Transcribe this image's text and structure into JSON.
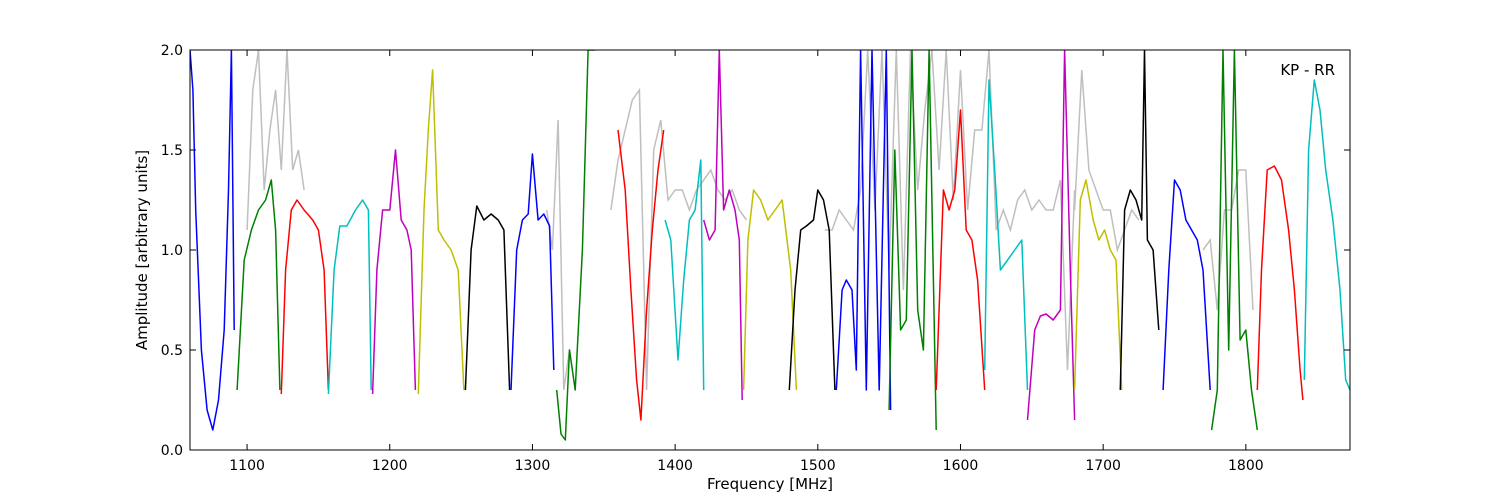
{
  "chart_data": {
    "type": "line",
    "annotation": "KP - RR",
    "xlabel": "Frequency [MHz]",
    "ylabel": "Amplitude [arbitrary units]",
    "xlim": [
      1060,
      1873
    ],
    "ylim": [
      0,
      2
    ],
    "xticks": [
      {
        "value": 1100,
        "label": "1100"
      },
      {
        "value": 1200,
        "label": "1200"
      },
      {
        "value": 1300,
        "label": "1300"
      },
      {
        "value": 1400,
        "label": "1400"
      },
      {
        "value": 1500,
        "label": "1500"
      },
      {
        "value": 1600,
        "label": "1600"
      },
      {
        "value": 1700,
        "label": "1700"
      },
      {
        "value": 1800,
        "label": "1800"
      }
    ],
    "yticks": [
      {
        "value": 0.0,
        "label": "0.0"
      },
      {
        "value": 0.5,
        "label": "0.5"
      },
      {
        "value": 1.0,
        "label": "1.0"
      },
      {
        "value": 1.5,
        "label": "1.5"
      },
      {
        "value": 2.0,
        "label": "2.0"
      }
    ],
    "grid": false,
    "background_series_color": "#bfbfbf",
    "series": [
      {
        "color": "#0000ff",
        "x": [
          1060,
          1062,
          1064,
          1068,
          1072,
          1076,
          1080,
          1084,
          1087,
          1089,
          1091
        ],
        "y": [
          2.0,
          1.8,
          1.2,
          0.5,
          0.2,
          0.1,
          0.25,
          0.6,
          1.3,
          2.0,
          0.6
        ]
      },
      {
        "color": "#008000",
        "x": [
          1093,
          1098,
          1103,
          1108,
          1113,
          1117,
          1120,
          1123
        ],
        "y": [
          0.3,
          0.95,
          1.1,
          1.2,
          1.25,
          1.35,
          1.1,
          0.3
        ]
      },
      {
        "color": "#ff0000",
        "x": [
          1124,
          1127,
          1131,
          1135,
          1140,
          1146,
          1150,
          1154,
          1157
        ],
        "y": [
          0.28,
          0.9,
          1.2,
          1.25,
          1.2,
          1.15,
          1.1,
          0.9,
          0.3
        ]
      },
      {
        "color": "#00bfbf",
        "x": [
          1157,
          1161,
          1165,
          1170,
          1176,
          1181,
          1185,
          1187
        ],
        "y": [
          0.28,
          0.9,
          1.12,
          1.12,
          1.2,
          1.25,
          1.2,
          0.3
        ]
      },
      {
        "color": "#bf00bf",
        "x": [
          1188,
          1191,
          1195,
          1200,
          1204,
          1208,
          1212,
          1215,
          1218
        ],
        "y": [
          0.28,
          0.9,
          1.2,
          1.2,
          1.5,
          1.15,
          1.1,
          1.0,
          0.3
        ]
      },
      {
        "color": "#bfbf00",
        "x": [
          1220,
          1224,
          1227,
          1230,
          1234,
          1238,
          1243,
          1248,
          1252
        ],
        "y": [
          0.28,
          1.2,
          1.6,
          1.9,
          1.1,
          1.05,
          1.0,
          0.9,
          0.3
        ]
      },
      {
        "color": "#000000",
        "x": [
          1253,
          1257,
          1261,
          1266,
          1271,
          1276,
          1280,
          1284
        ],
        "y": [
          0.3,
          1.0,
          1.22,
          1.15,
          1.18,
          1.15,
          1.1,
          0.3
        ]
      },
      {
        "color": "#0000ff",
        "x": [
          1285,
          1289,
          1293,
          1297,
          1300,
          1304,
          1308,
          1312,
          1315
        ],
        "y": [
          0.3,
          1.0,
          1.15,
          1.18,
          1.48,
          1.15,
          1.18,
          1.12,
          0.4
        ]
      },
      {
        "color": "#008000",
        "x": [
          1317,
          1320,
          1323,
          1326,
          1330,
          1335,
          1339,
          1342,
          1344
        ],
        "y": [
          0.3,
          0.08,
          0.05,
          0.5,
          0.3,
          1.0,
          2.0,
          2.0,
          2.0
        ]
      },
      {
        "color": "#ff0000",
        "x": [
          1360,
          1365,
          1369,
          1373,
          1376,
          1380,
          1384,
          1388,
          1392
        ],
        "y": [
          1.6,
          1.3,
          0.8,
          0.35,
          0.15,
          0.7,
          1.1,
          1.4,
          1.6
        ]
      },
      {
        "color": "#00bfbf",
        "x": [
          1393,
          1397,
          1402,
          1406,
          1410,
          1414,
          1418,
          1420
        ],
        "y": [
          1.15,
          1.05,
          0.45,
          0.85,
          1.15,
          1.2,
          1.45,
          0.3
        ]
      },
      {
        "color": "#bf00bf",
        "x": [
          1420,
          1424,
          1428,
          1431,
          1434,
          1438,
          1442,
          1445,
          1447
        ],
        "y": [
          1.15,
          1.05,
          1.1,
          2.0,
          1.2,
          1.3,
          1.2,
          1.05,
          0.25
        ]
      },
      {
        "color": "#bfbf00",
        "x": [
          1448,
          1451,
          1455,
          1460,
          1465,
          1470,
          1475,
          1481,
          1485
        ],
        "y": [
          0.3,
          1.05,
          1.3,
          1.25,
          1.15,
          1.2,
          1.25,
          0.9,
          0.3
        ]
      },
      {
        "color": "#000000",
        "x": [
          1480,
          1484,
          1488,
          1492,
          1497,
          1500,
          1504,
          1508,
          1512
        ],
        "y": [
          0.3,
          0.8,
          1.1,
          1.12,
          1.15,
          1.3,
          1.25,
          1.1,
          0.3
        ]
      },
      {
        "color": "#0000ff",
        "x": [
          1513,
          1517,
          1520,
          1524,
          1527,
          1530,
          1534,
          1538,
          1543,
          1548,
          1551
        ],
        "y": [
          0.3,
          0.8,
          0.85,
          0.8,
          0.4,
          2.0,
          0.3,
          2.0,
          0.3,
          2.0,
          0.2
        ]
      },
      {
        "color": "#008000",
        "x": [
          1550,
          1554,
          1558,
          1562,
          1566,
          1570,
          1574,
          1578,
          1583
        ],
        "y": [
          0.2,
          1.5,
          0.6,
          0.65,
          2.0,
          0.7,
          0.5,
          2.0,
          0.1
        ]
      },
      {
        "color": "#ff0000",
        "x": [
          1583,
          1588,
          1592,
          1596,
          1600,
          1604,
          1608,
          1612,
          1617
        ],
        "y": [
          0.3,
          1.3,
          1.2,
          1.3,
          1.7,
          1.1,
          1.05,
          0.85,
          0.3
        ]
      },
      {
        "color": "#00bfbf",
        "x": [
          1617,
          1620,
          1624,
          1628,
          1633,
          1638,
          1643,
          1647
        ],
        "y": [
          0.4,
          1.85,
          1.4,
          0.9,
          0.95,
          1.0,
          1.05,
          0.3
        ]
      },
      {
        "color": "#bf00bf",
        "x": [
          1647,
          1652,
          1656,
          1660,
          1665,
          1670,
          1673,
          1677,
          1680
        ],
        "y": [
          0.15,
          0.6,
          0.67,
          0.68,
          0.65,
          0.7,
          2.0,
          0.9,
          0.15
        ]
      },
      {
        "color": "#bfbf00",
        "x": [
          1680,
          1684,
          1688,
          1693,
          1697,
          1701,
          1705,
          1709,
          1713
        ],
        "y": [
          0.3,
          1.25,
          1.35,
          1.15,
          1.05,
          1.1,
          1.0,
          0.95,
          0.3
        ]
      },
      {
        "color": "#000000",
        "x": [
          1712,
          1715,
          1719,
          1723,
          1727,
          1729,
          1731,
          1735,
          1739
        ],
        "y": [
          0.3,
          1.2,
          1.3,
          1.25,
          1.15,
          2.0,
          1.05,
          1.0,
          0.6
        ]
      },
      {
        "color": "#0000ff",
        "x": [
          1742,
          1746,
          1750,
          1754,
          1758,
          1762,
          1766,
          1770,
          1775
        ],
        "y": [
          0.3,
          0.9,
          1.35,
          1.3,
          1.15,
          1.1,
          1.05,
          0.9,
          0.3
        ]
      },
      {
        "color": "#008000",
        "x": [
          1776,
          1780,
          1784,
          1788,
          1792,
          1796,
          1800,
          1804,
          1808
        ],
        "y": [
          0.1,
          0.3,
          2.0,
          0.5,
          2.0,
          0.55,
          0.6,
          0.3,
          0.1
        ]
      },
      {
        "color": "#ff0000",
        "x": [
          1808,
          1811,
          1815,
          1820,
          1825,
          1830,
          1834,
          1838,
          1840
        ],
        "y": [
          0.3,
          0.9,
          1.4,
          1.42,
          1.35,
          1.1,
          0.8,
          0.4,
          0.25
        ]
      },
      {
        "color": "#00bfbf",
        "x": [
          1841,
          1844,
          1848,
          1852,
          1856,
          1861,
          1866,
          1870,
          1873
        ],
        "y": [
          0.35,
          1.5,
          1.85,
          1.7,
          1.4,
          1.15,
          0.8,
          0.35,
          0.3
        ]
      }
    ],
    "background_series": [
      {
        "x": [
          1100,
          1104,
          1108,
          1112,
          1116,
          1120,
          1124,
          1128,
          1132,
          1136,
          1140
        ],
        "y": [
          1.1,
          1.8,
          2.0,
          1.3,
          1.6,
          1.8,
          1.4,
          2.0,
          1.4,
          1.5,
          1.3
        ]
      },
      {
        "x": [
          1355,
          1360,
          1365,
          1370,
          1375,
          1380,
          1385,
          1390,
          1395,
          1400,
          1405,
          1410,
          1415,
          1420,
          1425,
          1430,
          1435,
          1440,
          1445,
          1450
        ],
        "y": [
          1.2,
          1.45,
          1.6,
          1.75,
          1.8,
          0.3,
          1.5,
          1.65,
          1.25,
          1.3,
          1.3,
          1.2,
          1.3,
          1.35,
          1.4,
          1.3,
          1.25,
          1.3,
          1.2,
          1.15
        ]
      },
      {
        "x": [
          1505,
          1510,
          1515,
          1520,
          1525,
          1530,
          1535,
          1540,
          1545,
          1550,
          1555,
          1560,
          1565,
          1570,
          1575,
          1580,
          1585,
          1590,
          1595,
          1600,
          1605,
          1610,
          1615,
          1620,
          1625,
          1630,
          1635,
          1640,
          1645,
          1650,
          1655,
          1660,
          1665,
          1670,
          1675,
          1680
        ],
        "y": [
          1.1,
          1.1,
          1.2,
          1.15,
          1.1,
          1.3,
          2.0,
          1.2,
          2.0,
          0.9,
          2.0,
          0.8,
          2.0,
          1.3,
          1.7,
          2.0,
          1.4,
          2.0,
          1.25,
          1.9,
          1.2,
          1.6,
          1.6,
          2.0,
          1.1,
          1.2,
          1.1,
          1.25,
          1.3,
          1.2,
          1.25,
          1.2,
          1.2,
          1.35,
          0.4,
          1.3
        ]
      },
      {
        "x": [
          1680,
          1685,
          1690,
          1695,
          1700,
          1705,
          1710,
          1715,
          1720,
          1725
        ],
        "y": [
          1.2,
          1.9,
          1.4,
          1.3,
          1.2,
          1.2,
          1.0,
          1.1,
          1.2,
          1.15
        ]
      },
      {
        "x": [
          1770,
          1775,
          1780,
          1785,
          1790,
          1795,
          1800,
          1805
        ],
        "y": [
          1.0,
          1.05,
          0.7,
          1.2,
          1.2,
          1.4,
          1.4,
          0.7
        ]
      },
      {
        "x": [
          1310,
          1314,
          1318,
          1322,
          1326
        ],
        "y": [
          1.2,
          1.0,
          1.65,
          0.3,
          0.5
        ]
      }
    ]
  }
}
